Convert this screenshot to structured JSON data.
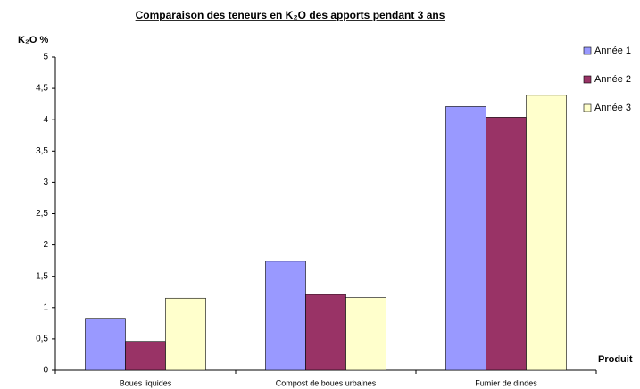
{
  "chart_data": {
    "type": "bar",
    "title": "Comparaison des teneurs en K₂O des apports pendant 3 ans",
    "y_label": "K₂O %",
    "x_label": "Produit",
    "categories": [
      "Boues liquides",
      "Compost de boues urbaines",
      "Fumier de dindes"
    ],
    "series": [
      {
        "name": "Année 1",
        "color": "#9999ff",
        "values": [
          0.83,
          1.74,
          4.21
        ]
      },
      {
        "name": "Année 2",
        "color": "#993366",
        "values": [
          0.46,
          1.21,
          4.04
        ]
      },
      {
        "name": "Année 3",
        "color": "#ffffcc",
        "values": [
          1.15,
          1.16,
          4.39
        ]
      }
    ],
    "ylim": [
      0,
      5
    ],
    "yticks": [
      0,
      {
        "value": 0.5,
        "label": "0,5"
      },
      1,
      {
        "value": 1.5,
        "label": "1,5"
      },
      2,
      {
        "value": 2.5,
        "label": "2,5"
      },
      3,
      {
        "value": 3.5,
        "label": "3,5"
      },
      4,
      {
        "value": 4.5,
        "label": "4,5"
      },
      5
    ],
    "grid": false,
    "legend": "right"
  }
}
